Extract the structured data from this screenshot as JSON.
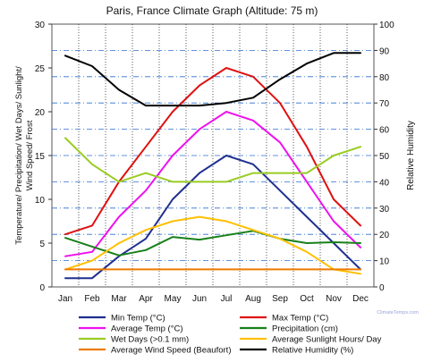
{
  "chart_data": {
    "type": "line",
    "title": "Paris, France Climate Graph (Altitude: 75 m)",
    "left_axis": {
      "label": "Temperature/ Precipitation/ Wet Days/ Sunlight/ Wind Speed/ Frost",
      "range": [
        0,
        30
      ],
      "ticks": [
        0,
        5,
        10,
        15,
        20,
        25,
        30
      ]
    },
    "right_axis": {
      "label": "Relative Humidity",
      "range": [
        0,
        100
      ],
      "ticks": [
        0,
        10,
        20,
        30,
        40,
        50,
        60,
        70,
        80,
        90,
        100
      ]
    },
    "categories": [
      "Jan",
      "Feb",
      "Mar",
      "Apr",
      "May",
      "Jun",
      "Jul",
      "Aug",
      "Sep",
      "Oct",
      "Nov",
      "Dec"
    ],
    "grid": true,
    "legend_position": "bottom",
    "series": [
      {
        "name": "Min Temp (°C)",
        "color": "#1f2f8f",
        "axis": "left",
        "values": [
          1,
          1,
          3.5,
          5.5,
          10,
          13,
          15,
          14,
          11,
          8,
          5,
          2
        ]
      },
      {
        "name": "Max Temp (°C)",
        "color": "#e01010",
        "axis": "left",
        "values": [
          6,
          7,
          12,
          16,
          20,
          23,
          25,
          24,
          21,
          16,
          10,
          7
        ]
      },
      {
        "name": "Average Temp (°C)",
        "color": "#ee10ee",
        "axis": "left",
        "values": [
          3.5,
          4,
          8,
          11,
          15,
          18,
          20,
          19,
          16.5,
          12,
          7.5,
          4.5
        ]
      },
      {
        "name": "Precipitation (cm)",
        "color": "#18801a",
        "axis": "left",
        "values": [
          5.6,
          4.6,
          3.6,
          4.2,
          5.7,
          5.4,
          5.9,
          6.4,
          5.5,
          5,
          5.1,
          5
        ]
      },
      {
        "name": "Wet Days (>0.1 mm)",
        "color": "#99cc22",
        "axis": "left",
        "values": [
          17,
          14,
          12,
          13,
          12,
          12,
          12,
          13,
          13,
          13,
          15,
          16
        ]
      },
      {
        "name": "Average Sunlight Hours/ Day",
        "color": "#ffc000",
        "axis": "left",
        "values": [
          2,
          3,
          5,
          6.5,
          7.5,
          8,
          7.5,
          6.5,
          5.5,
          4,
          2,
          1.5
        ]
      },
      {
        "name": "Average Wind Speed (Beaufort)",
        "color": "#ee7a00",
        "axis": "left",
        "values": [
          2,
          2,
          2,
          2,
          2,
          2,
          2,
          2,
          2,
          2,
          2,
          2
        ]
      },
      {
        "name": "Relative Humidity (%)",
        "color": "#000000",
        "axis": "right",
        "values": [
          88,
          84,
          75,
          69,
          69,
          69,
          70,
          72,
          79,
          85,
          89,
          89
        ]
      }
    ]
  },
  "watermark": "ClimateTemps.com"
}
